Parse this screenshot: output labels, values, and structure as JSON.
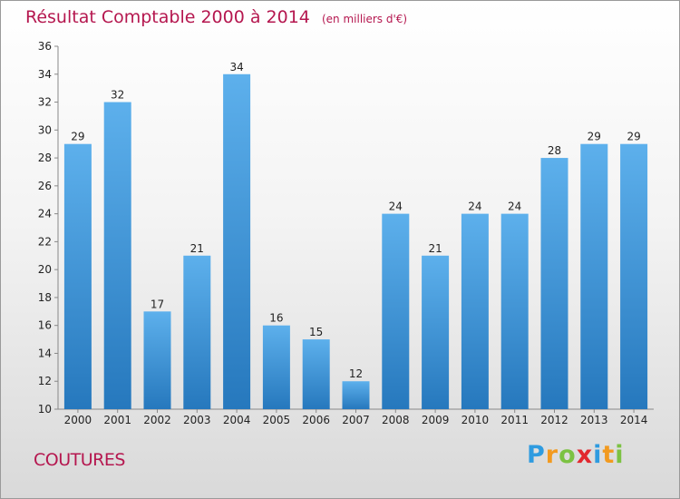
{
  "header": {
    "title": "Résultat Comptable 2000 à 2014",
    "unit": "(en milliers d'€)"
  },
  "footer": {
    "commune": "COUTURES",
    "logo": [
      "P",
      "r",
      "o",
      "x",
      "i",
      "t",
      "i"
    ],
    "logo_colors": [
      "#2e9be0",
      "#f29a1f",
      "#7cc242",
      "#e2282e",
      "#2e9be0",
      "#f29a1f",
      "#7cc242"
    ]
  },
  "colors": {
    "accent": "#b5174f",
    "bar_light": "#5db0ec",
    "bar_dark": "#2678bd",
    "axis": "#888888"
  },
  "chart_data": {
    "type": "bar",
    "categories": [
      "2000",
      "2001",
      "2002",
      "2003",
      "2004",
      "2005",
      "2006",
      "2007",
      "2008",
      "2009",
      "2010",
      "2011",
      "2012",
      "2013",
      "2014"
    ],
    "values": [
      29,
      32,
      17,
      21,
      34,
      16,
      15,
      12,
      24,
      21,
      24,
      24,
      28,
      29,
      29
    ],
    "ylim": [
      10,
      36
    ],
    "yticks": [
      10,
      12,
      14,
      16,
      18,
      20,
      22,
      24,
      26,
      28,
      30,
      32,
      34,
      36
    ],
    "grid": false,
    "data_labels": true
  }
}
